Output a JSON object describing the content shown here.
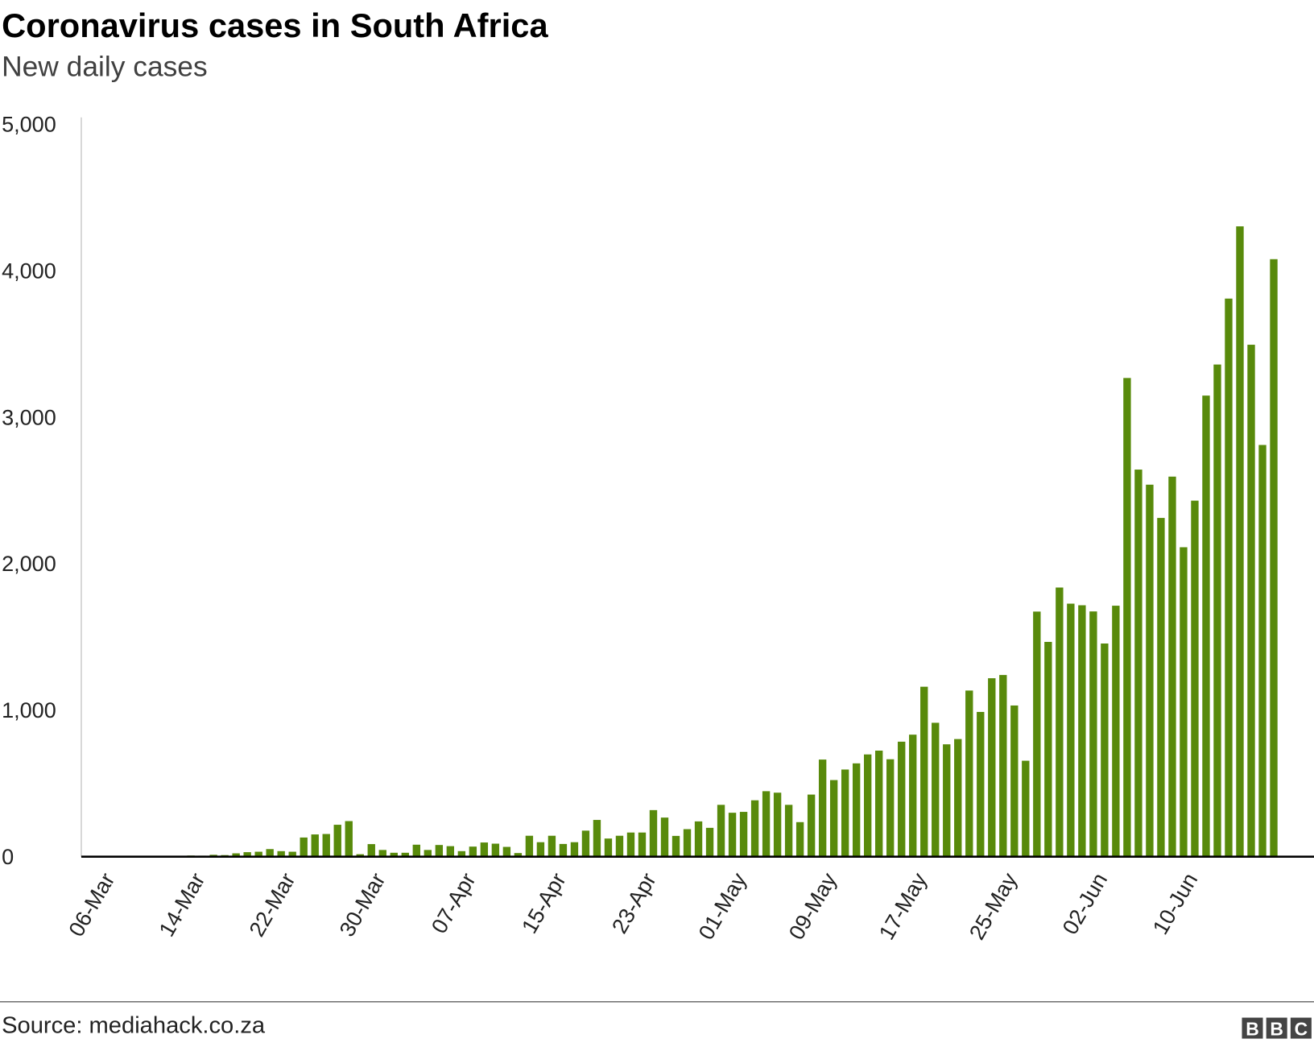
{
  "chart_data": {
    "type": "bar",
    "title": "Coronavirus cases in South Africa",
    "subtitle": "New daily cases",
    "source": "Source: mediahack.co.za",
    "logo": "BBC",
    "categories": [
      "06-Mar",
      null,
      null,
      null,
      null,
      null,
      null,
      null,
      "14-Mar",
      null,
      null,
      null,
      null,
      null,
      null,
      null,
      "22-Mar",
      null,
      null,
      null,
      null,
      null,
      null,
      null,
      "30-Mar",
      null,
      null,
      null,
      null,
      null,
      null,
      null,
      "07-Apr",
      null,
      null,
      null,
      null,
      null,
      null,
      null,
      "15-Apr",
      null,
      null,
      null,
      null,
      null,
      null,
      null,
      "23-Apr",
      null,
      null,
      null,
      null,
      null,
      null,
      null,
      "01-May",
      null,
      null,
      null,
      null,
      null,
      null,
      null,
      "09-May",
      null,
      null,
      null,
      null,
      null,
      null,
      null,
      "17-May",
      null,
      null,
      null,
      null,
      null,
      null,
      null,
      "25-May",
      null,
      null,
      null,
      null,
      null,
      null,
      null,
      "02-Jun",
      null,
      null,
      null,
      null,
      null,
      null,
      null,
      "10-Jun",
      null,
      null,
      null,
      null,
      null,
      null,
      null
    ],
    "values": [
      0,
      1,
      1,
      4,
      0,
      6,
      3,
      8,
      7,
      13,
      11,
      23,
      31,
      34,
      52,
      38,
      34,
      131,
      152,
      155,
      218,
      243,
      17,
      86,
      46,
      27,
      27,
      82,
      46,
      80,
      72,
      38,
      69,
      97,
      89,
      67,
      25,
      143,
      99,
      143,
      87,
      99,
      178,
      251,
      124,
      143,
      165,
      165,
      318,
      267,
      142,
      188,
      241,
      197,
      354,
      300,
      306,
      385,
      447,
      437,
      354,
      236,
      424,
      663,
      523,
      595,
      637,
      698,
      724,
      665,
      785,
      833,
      1160,
      914,
      767,
      803,
      1134,
      988,
      1218,
      1240,
      1032,
      655,
      1673,
      1466,
      1837,
      1727,
      1716,
      1674,
      1455,
      1713,
      3267,
      2642,
      2539,
      2312,
      2594,
      2112,
      2430,
      3147,
      3359,
      3809,
      4302,
      3494,
      2810,
      4078
    ],
    "color": "#588a0b",
    "ylim": [
      0,
      5000
    ],
    "yticks": [
      0,
      {
        "value": 1000,
        "label": "1,000"
      },
      {
        "value": 2000,
        "label": "2,000"
      },
      {
        "value": 3000,
        "label": "3,000"
      },
      {
        "value": 4000,
        "label": "4,000"
      },
      {
        "value": 5000,
        "label": "5,000"
      }
    ],
    "grid": false
  }
}
